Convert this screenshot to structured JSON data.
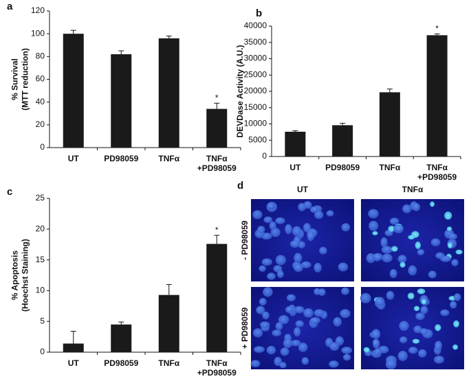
{
  "chart_data": [
    {
      "type": "bar",
      "panel_label": "a",
      "y_label": [
        "% Survival",
        "(MTT reduction)"
      ],
      "categories": [
        [
          "UT"
        ],
        [
          "PD98059"
        ],
        [
          "TNFα"
        ],
        [
          "TNFα",
          "+PD98059"
        ]
      ],
      "values": [
        100,
        82,
        96,
        34
      ],
      "errors": [
        3,
        3,
        2,
        5
      ],
      "value_annotations": [
        null,
        null,
        null,
        "*"
      ],
      "color": "#1a1a1a",
      "ylim": [
        0,
        120
      ],
      "yticks": [
        0,
        20,
        40,
        60,
        80,
        100,
        120
      ]
    },
    {
      "type": "bar",
      "panel_label": "b",
      "y_label": [
        "DEVDase Activity (A.U.)"
      ],
      "categories": [
        [
          "UT"
        ],
        [
          "PD98059"
        ],
        [
          "TNFα"
        ],
        [
          "TNFα",
          "+PD98059"
        ]
      ],
      "values": [
        7600,
        9600,
        19700,
        37200
      ],
      "errors": [
        300,
        600,
        1000,
        400
      ],
      "value_annotations": [
        null,
        null,
        null,
        "*"
      ],
      "color": "#1a1a1a",
      "ylim": [
        0,
        40000
      ],
      "yticks": [
        0,
        5000,
        10000,
        15000,
        20000,
        25000,
        30000,
        35000,
        40000
      ]
    },
    {
      "type": "bar",
      "panel_label": "c",
      "y_label": [
        "% Apoptosis",
        "(Hoechst Staining)"
      ],
      "categories": [
        [
          "UT"
        ],
        [
          "PD98059"
        ],
        [
          "TNFα"
        ],
        [
          "TNFα",
          "+PD98059"
        ]
      ],
      "values": [
        1.4,
        4.5,
        9.3,
        17.6
      ],
      "errors": [
        2.0,
        0.4,
        1.7,
        1.4
      ],
      "value_annotations": [
        null,
        null,
        null,
        "*"
      ],
      "color": "#1a1a1a",
      "ylim": [
        0,
        25
      ],
      "yticks": [
        0,
        5,
        10,
        15,
        20,
        25
      ]
    },
    {
      "type": "image_grid",
      "panel_label": "d",
      "columns": [
        "UT",
        "TNFα"
      ],
      "rows": [
        "- PD98059",
        "+ PD98059"
      ]
    }
  ]
}
